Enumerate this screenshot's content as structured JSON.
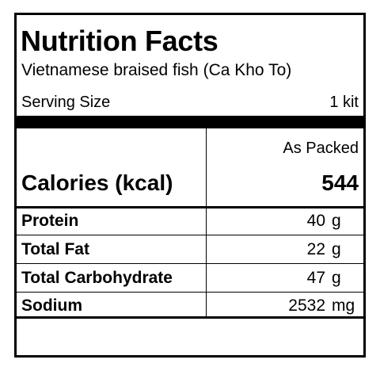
{
  "title": "Nutrition Facts",
  "product_name": "Vietnamese braised fish (Ca Kho To)",
  "serving": {
    "label": "Serving Size",
    "value": "1 kit"
  },
  "column_header": "As Packed",
  "calories": {
    "label": "Calories (kcal)",
    "value": "544"
  },
  "nutrients": [
    {
      "label": "Protein",
      "value": "40",
      "unit": "g"
    },
    {
      "label": "Total Fat",
      "value": "22",
      "unit": "g"
    },
    {
      "label": "Total Carbohydrate",
      "value": "47",
      "unit": "g"
    },
    {
      "label": "Sodium",
      "value": "2532",
      "unit": "mg"
    }
  ]
}
